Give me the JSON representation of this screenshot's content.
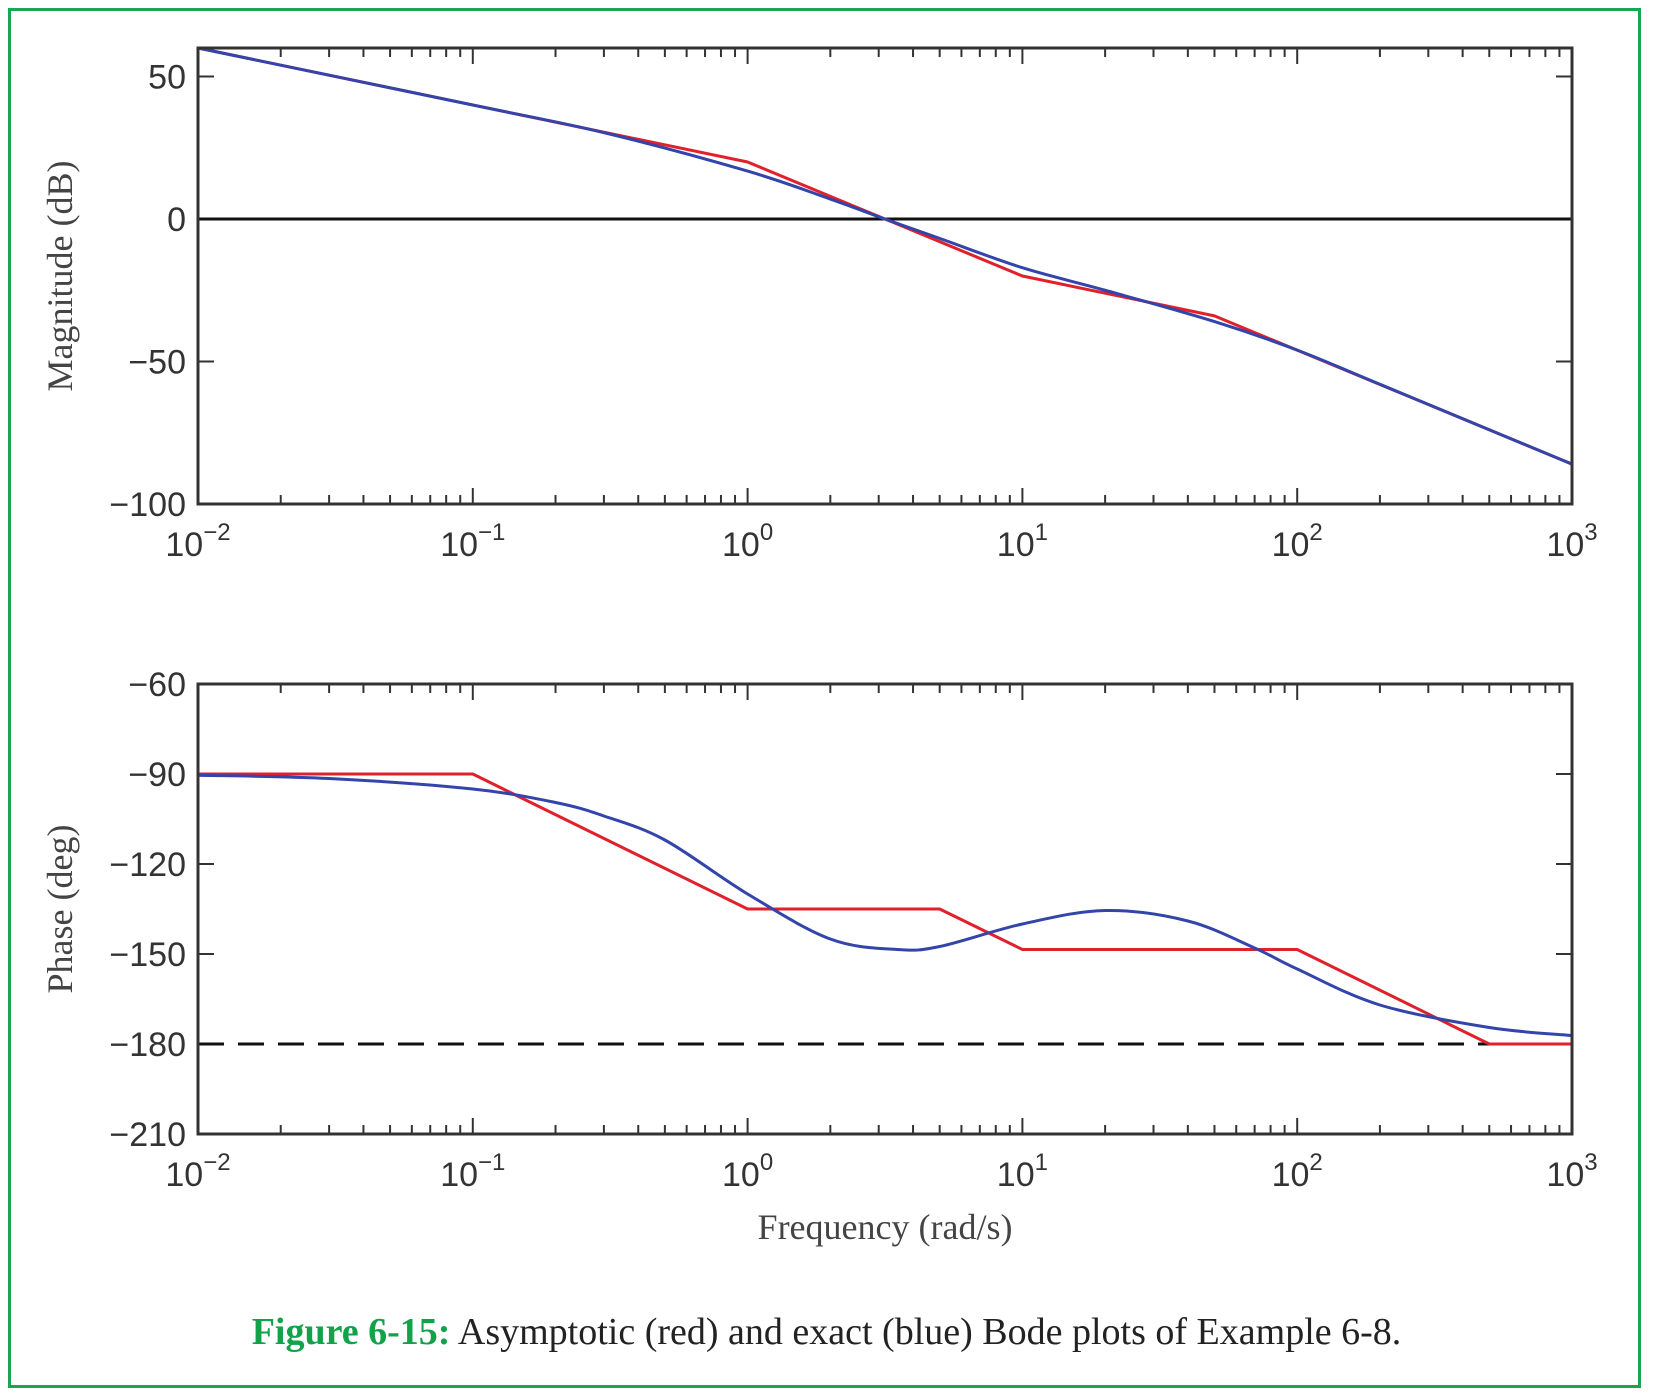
{
  "caption": {
    "label": "Figure 6-15:",
    "text": " Asymptotic (red) and exact (blue) Bode plots of Example 6-8."
  },
  "colors": {
    "asymptotic": "#e0202a",
    "exact": "#3344aa",
    "frame": "#1aa550",
    "caption_label": "#12a24a"
  },
  "chart_data": [
    {
      "type": "line",
      "title": "",
      "xlabel": "",
      "ylabel": "Magnitude (dB)",
      "xscale": "log",
      "xlim": [
        0.01,
        1000
      ],
      "ylim": [
        -100,
        60
      ],
      "yticks": [
        50,
        0,
        -50,
        -100
      ],
      "ytick_labels": [
        "50",
        "0",
        "−50",
        "−100"
      ],
      "xticks": [
        0.01,
        0.1,
        1,
        10,
        100,
        1000
      ],
      "xtick_labels": [
        {
          "base": "10",
          "exp": "−2"
        },
        {
          "base": "10",
          "exp": "−1"
        },
        {
          "base": "10",
          "exp": "0"
        },
        {
          "base": "10",
          "exp": "1"
        },
        {
          "base": "10",
          "exp": "2"
        },
        {
          "base": "10",
          "exp": "3"
        }
      ],
      "reference_line": {
        "y": 0,
        "style": "solid"
      },
      "series": [
        {
          "color": "#e0202a",
          "x": [
            0.01,
            1,
            10,
            50,
            1000
          ],
          "y": [
            60,
            20,
            -20,
            -34,
            -86
          ]
        },
        {
          "color": "#3344aa",
          "x": [
            0.01,
            0.1,
            0.3,
            1,
            2,
            3.16,
            5,
            10,
            20,
            50,
            100,
            200,
            1000
          ],
          "y": [
            60,
            40,
            30.3,
            16.8,
            7,
            0,
            -6.8,
            -17.1,
            -25,
            -36,
            -46,
            -58,
            -86
          ]
        }
      ]
    },
    {
      "type": "line",
      "title": "",
      "xlabel": "Frequency (rad/s)",
      "ylabel": "Phase (deg)",
      "xscale": "log",
      "xlim": [
        0.01,
        1000
      ],
      "ylim": [
        -210,
        -60
      ],
      "yticks": [
        -60,
        -90,
        -120,
        -150,
        -180,
        -210
      ],
      "ytick_labels": [
        "−60",
        "−90",
        "−120",
        "−150",
        "−180",
        "−210"
      ],
      "xticks": [
        0.01,
        0.1,
        1,
        10,
        100,
        1000
      ],
      "xtick_labels": [
        {
          "base": "10",
          "exp": "−2"
        },
        {
          "base": "10",
          "exp": "−1"
        },
        {
          "base": "10",
          "exp": "0"
        },
        {
          "base": "10",
          "exp": "1"
        },
        {
          "base": "10",
          "exp": "2"
        },
        {
          "base": "10",
          "exp": "3"
        }
      ],
      "reference_line": {
        "y": -180,
        "style": "dashed"
      },
      "series": [
        {
          "color": "#e0202a",
          "x": [
            0.01,
            0.1,
            1,
            5,
            10,
            100,
            500,
            1000
          ],
          "y": [
            -90,
            -90,
            -135,
            -135,
            -148.5,
            -148.5,
            -180,
            -180
          ]
        },
        {
          "color": "#3344aa",
          "x": [
            0.01,
            0.03,
            0.1,
            0.2,
            0.3,
            0.5,
            1,
            2,
            3.5,
            5,
            10,
            20,
            40,
            70,
            100,
            200,
            500,
            1000
          ],
          "y": [
            -90.4,
            -91.5,
            -95,
            -99.5,
            -104,
            -112,
            -130,
            -145,
            -148.5,
            -147.5,
            -140,
            -135.5,
            -139,
            -148,
            -155,
            -167,
            -174.5,
            -177.2
          ]
        }
      ]
    }
  ]
}
